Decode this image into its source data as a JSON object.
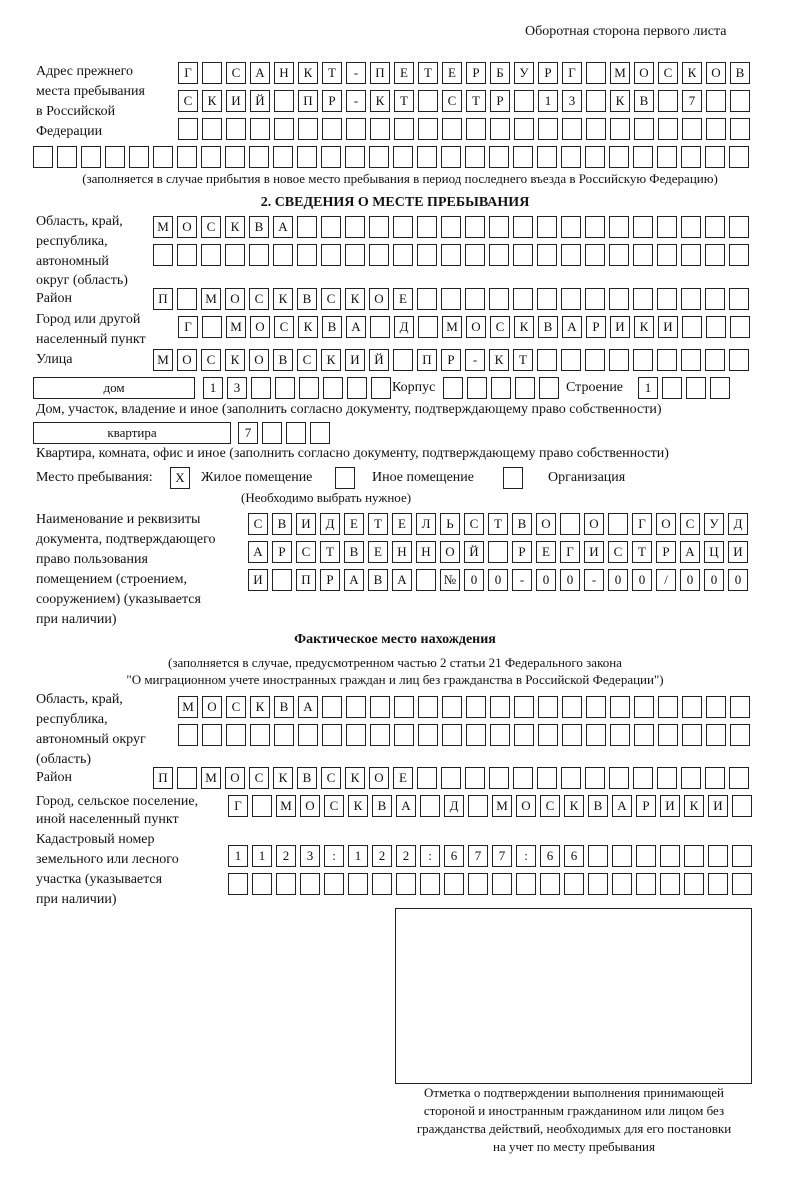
{
  "header": {
    "side_note": "Оборотная сторона первого листа"
  },
  "previous_address": {
    "label_lines": [
      "Адрес прежнего",
      "места пребывания",
      "в Российской",
      "Федерации"
    ],
    "row1": [
      "Г",
      "",
      "С",
      "А",
      "Н",
      "К",
      "Т",
      "-",
      "П",
      "Е",
      "Т",
      "Е",
      "Р",
      "Б",
      "У",
      "Р",
      "Г",
      "",
      "М",
      "О",
      "С",
      "К",
      "О",
      "В"
    ],
    "row2": [
      "С",
      "К",
      "И",
      "Й",
      "",
      "П",
      "Р",
      "-",
      "К",
      "Т",
      "",
      "С",
      "Т",
      "Р",
      "",
      "1",
      "3",
      "",
      "К",
      "В",
      "",
      "7",
      "",
      ""
    ],
    "row3": [
      "",
      "",
      "",
      "",
      "",
      "",
      "",
      "",
      "",
      "",
      "",
      "",
      "",
      "",
      "",
      "",
      "",
      "",
      "",
      "",
      "",
      "",
      "",
      ""
    ],
    "row4": [
      "",
      "",
      "",
      "",
      "",
      "",
      "",
      "",
      "",
      "",
      "",
      "",
      "",
      "",
      "",
      "",
      "",
      "",
      "",
      "",
      "",
      "",
      "",
      "",
      "",
      "",
      "",
      "",
      "",
      ""
    ],
    "note": "(заполняется в случае прибытия в новое место пребывания в период последнего въезда в Российскую Федерацию)"
  },
  "section2": {
    "title": "2. СВЕДЕНИЯ О МЕСТЕ ПРЕБЫВАНИЯ",
    "region_label_lines": [
      "Область, край,",
      "республика,",
      "автономный",
      "округ (область)"
    ],
    "region_row1": [
      "М",
      "О",
      "С",
      "К",
      "В",
      "А",
      "",
      "",
      "",
      "",
      "",
      "",
      "",
      "",
      "",
      "",
      "",
      "",
      "",
      "",
      "",
      "",
      "",
      "",
      ""
    ],
    "region_row2": [
      "",
      "",
      "",
      "",
      "",
      "",
      "",
      "",
      "",
      "",
      "",
      "",
      "",
      "",
      "",
      "",
      "",
      "",
      "",
      "",
      "",
      "",
      "",
      "",
      ""
    ],
    "district_label": "Район",
    "district_row": [
      "П",
      "",
      "М",
      "О",
      "С",
      "К",
      "В",
      "С",
      "К",
      "О",
      "Е",
      "",
      "",
      "",
      "",
      "",
      "",
      "",
      "",
      "",
      "",
      "",
      "",
      "",
      ""
    ],
    "city_label_lines": [
      "Город или другой",
      "населенный пункт"
    ],
    "city_row": [
      "Г",
      "",
      "М",
      "О",
      "С",
      "К",
      "В",
      "А",
      "",
      "Д",
      "",
      "М",
      "О",
      "С",
      "К",
      "В",
      "А",
      "Р",
      "И",
      "К",
      "И",
      "",
      "",
      ""
    ],
    "street_label": "Улица",
    "street_row": [
      "М",
      "О",
      "С",
      "К",
      "О",
      "В",
      "С",
      "К",
      "И",
      "Й",
      "",
      "П",
      "Р",
      "-",
      "К",
      "Т",
      "",
      "",
      "",
      "",
      "",
      "",
      "",
      "",
      ""
    ],
    "house_type": "дом",
    "house_cells": [
      "1",
      "3",
      "",
      "",
      "",
      "",
      "",
      ""
    ],
    "korpus_label": "Корпус",
    "korpus_cells": [
      "",
      "",
      "",
      "",
      ""
    ],
    "building_label": "Строение",
    "building_cells": [
      "1",
      "",
      "",
      ""
    ],
    "house_note": "Дом, участок, владение и иное (заполнить согласно документу, подтверждающему право собственности)",
    "apartment_type": "квартира",
    "apartment_cells": [
      "7",
      "",
      "",
      ""
    ],
    "apartment_note": "Квартира, комната, офис и иное (заполнить согласно документу, подтверждающему право собственности)",
    "stay_place_label": "Место пребывания:",
    "stay_options": [
      {
        "label": "Жилое помещение",
        "mark": "X",
        "checked": true
      },
      {
        "label": "Иное помещение",
        "mark": "",
        "checked": false
      },
      {
        "label": "Организация",
        "mark": "",
        "checked": false
      }
    ],
    "stay_hint": "(Необходимо выбрать нужное)",
    "doc_label_lines": [
      "Наименование и реквизиты",
      "документа, подтверждающего",
      "право пользования",
      "помещением (строением,",
      "сооружением) (указывается",
      "при наличии)"
    ],
    "doc_row1": [
      "С",
      "В",
      "И",
      "Д",
      "Е",
      "Т",
      "Е",
      "Л",
      "Ь",
      "С",
      "Т",
      "В",
      "О",
      "",
      "О",
      "",
      "Г",
      "О",
      "С",
      "У",
      "Д"
    ],
    "doc_row2": [
      "А",
      "Р",
      "С",
      "Т",
      "В",
      "Е",
      "Н",
      "Н",
      "О",
      "Й",
      "",
      "Р",
      "Е",
      "Г",
      "И",
      "С",
      "Т",
      "Р",
      "А",
      "Ц",
      "И"
    ],
    "doc_row3": [
      "И",
      "",
      "П",
      "Р",
      "А",
      "В",
      "А",
      "",
      "№",
      "0",
      "0",
      "-",
      "0",
      "0",
      "-",
      "0",
      "0",
      "/",
      "0",
      "0",
      "0"
    ]
  },
  "actual_location": {
    "title": "Фактическое место нахождения",
    "note_lines": [
      "(заполняется в случае, предусмотренном частью 2 статьи 21 Федерального закона",
      "\"О миграционном учете иностранных граждан и лиц без гражданства в Российской Федерации\")"
    ],
    "region_label_lines": [
      "Область, край,",
      "республика,",
      "автономный округ",
      "(область)"
    ],
    "region_row1": [
      "М",
      "О",
      "С",
      "К",
      "В",
      "А",
      "",
      "",
      "",
      "",
      "",
      "",
      "",
      "",
      "",
      "",
      "",
      "",
      "",
      "",
      "",
      "",
      "",
      ""
    ],
    "region_row2": [
      "",
      "",
      "",
      "",
      "",
      "",
      "",
      "",
      "",
      "",
      "",
      "",
      "",
      "",
      "",
      "",
      "",
      "",
      "",
      "",
      "",
      "",
      "",
      ""
    ],
    "district_label": "Район",
    "district_row": [
      "П",
      "",
      "М",
      "О",
      "С",
      "К",
      "В",
      "С",
      "К",
      "О",
      "Е",
      "",
      "",
      "",
      "",
      "",
      "",
      "",
      "",
      "",
      "",
      "",
      "",
      "",
      ""
    ],
    "city_label_lines": [
      "Город, сельское поселение,",
      "иной населенный пункт"
    ],
    "city_row": [
      "Г",
      "",
      "М",
      "О",
      "С",
      "К",
      "В",
      "А",
      "",
      "Д",
      "",
      "М",
      "О",
      "С",
      "К",
      "В",
      "А",
      "Р",
      "И",
      "К",
      "И",
      ""
    ],
    "cadastral_label_lines": [
      "Кадастровый номер",
      "земельного или лесного",
      "участка (указывается",
      "при наличии)"
    ],
    "cadastral_row1": [
      "1",
      "1",
      "2",
      "3",
      ":",
      "1",
      "2",
      "2",
      ":",
      "6",
      "7",
      "7",
      ":",
      "6",
      "6",
      "",
      "",
      "",
      "",
      "",
      "",
      ""
    ],
    "cadastral_row2": [
      "",
      "",
      "",
      "",
      "",
      "",
      "",
      "",
      "",
      "",
      "",
      "",
      "",
      "",
      "",
      "",
      "",
      "",
      "",
      "",
      "",
      ""
    ]
  },
  "confirmation": {
    "caption_lines": [
      "Отметка о подтверждении выполнения принимающей",
      "стороной и иностранным гражданином или лицом без",
      "гражданства действий, необходимых для его постановки",
      "на учет по месту пребывания"
    ]
  }
}
